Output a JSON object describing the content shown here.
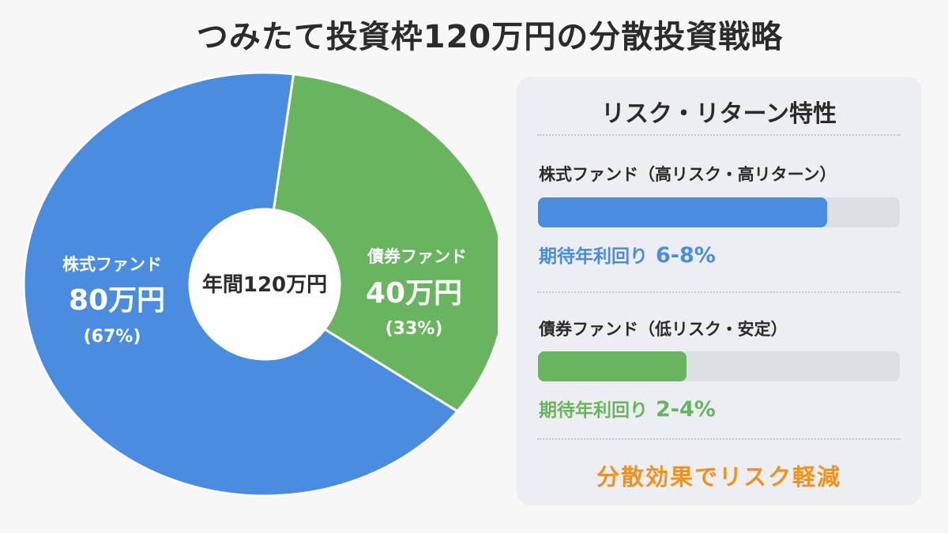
{
  "title": "つみたて投資枠120万円の分散投資戦略",
  "chart_data": {
    "type": "pie",
    "donut": true,
    "center_label": "年間120万円",
    "slices": [
      {
        "name": "株式ファンド",
        "amount_label": "80万円",
        "percent_label": "(67%)",
        "value": 80,
        "percent": 67,
        "color": "#4a8ce0"
      },
      {
        "name": "債券ファンド",
        "amount_label": "40万円",
        "percent_label": "(33%)",
        "value": 40,
        "percent": 33,
        "color": "#69b45e"
      }
    ]
  },
  "panel": {
    "title": "リスク・リターン特性",
    "funds": [
      {
        "name": "株式ファンド（高リスク・高リターン）",
        "bar_fraction": 0.8,
        "color": "#4a8ce0",
        "return_label": "期待年利回り",
        "return_value": "6-8%"
      },
      {
        "name": "債券ファンド（低リスク・安定）",
        "bar_fraction": 0.41,
        "color": "#69b45e",
        "return_label": "期待年利回り",
        "return_value": "2-4%"
      }
    ],
    "footer": "分散効果でリスク軽減"
  }
}
